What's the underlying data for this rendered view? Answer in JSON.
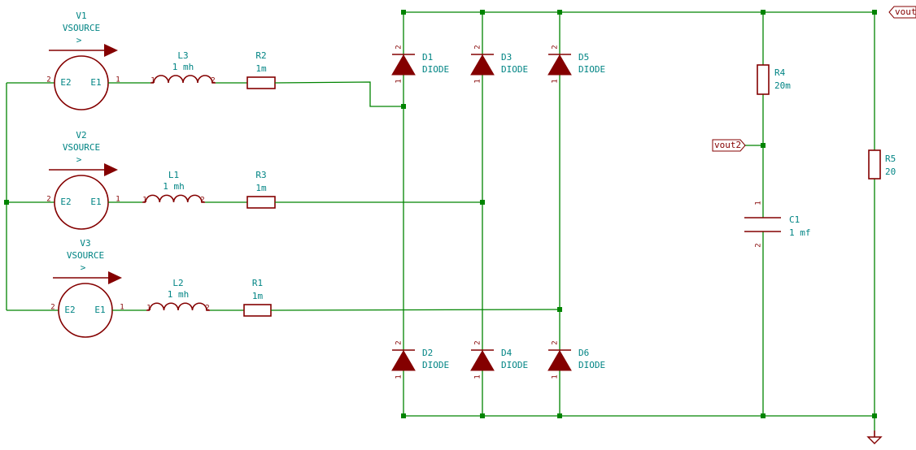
{
  "sources": [
    {
      "ref": "V1",
      "value": "VSOURCE",
      "arrow": ">",
      "pins": [
        "E2",
        "E1"
      ],
      "pin_numbers": [
        "2",
        "1"
      ]
    },
    {
      "ref": "V2",
      "value": "VSOURCE",
      "arrow": ">",
      "pins": [
        "E2",
        "E1"
      ],
      "pin_numbers": [
        "2",
        "1"
      ]
    },
    {
      "ref": "V3",
      "value": "VSOURCE",
      "arrow": ">",
      "pins": [
        "E2",
        "E1"
      ],
      "pin_numbers": [
        "2",
        "1"
      ]
    }
  ],
  "inductors": [
    {
      "ref": "L3",
      "value": "1 mh",
      "pin_numbers": [
        "1",
        "2"
      ]
    },
    {
      "ref": "L1",
      "value": "1 mh",
      "pin_numbers": [
        "1",
        "2"
      ]
    },
    {
      "ref": "L2",
      "value": "1 mh",
      "pin_numbers": [
        "1",
        "2"
      ]
    }
  ],
  "resistors": [
    {
      "ref": "R2",
      "value": "1m"
    },
    {
      "ref": "R3",
      "value": "1m"
    },
    {
      "ref": "R1",
      "value": "1m"
    },
    {
      "ref": "R4",
      "value": "20m"
    },
    {
      "ref": "R5",
      "value": "20"
    }
  ],
  "diodes": [
    {
      "ref": "D1",
      "value": "DIODE",
      "pin_numbers": [
        "2",
        "1"
      ]
    },
    {
      "ref": "D3",
      "value": "DIODE",
      "pin_numbers": [
        "2",
        "1"
      ]
    },
    {
      "ref": "D5",
      "value": "DIODE",
      "pin_numbers": [
        "2",
        "1"
      ]
    },
    {
      "ref": "D2",
      "value": "DIODE",
      "pin_numbers": [
        "2",
        "1"
      ]
    },
    {
      "ref": "D4",
      "value": "DIODE",
      "pin_numbers": [
        "2",
        "1"
      ]
    },
    {
      "ref": "D6",
      "value": "DIODE",
      "pin_numbers": [
        "2",
        "1"
      ]
    }
  ],
  "capacitor": {
    "ref": "C1",
    "value": "1 mf",
    "pin_numbers": [
      "1",
      "2"
    ]
  },
  "labels": [
    "vout",
    "vout2"
  ]
}
